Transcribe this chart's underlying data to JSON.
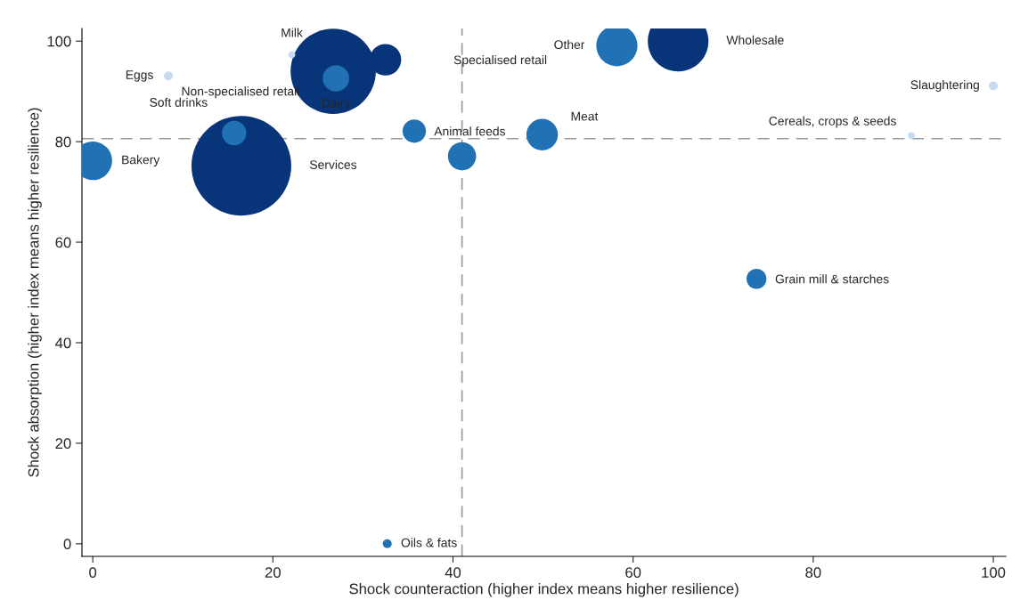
{
  "chart_data": {
    "type": "bubble",
    "xlabel": "Shock counteraction (higher index means higher resilience)",
    "ylabel": "Shock absorption (higher index means higher resilience)",
    "x": [
      0,
      16.5,
      15.7,
      8.4,
      22.1,
      26.7,
      27.0,
      32.5,
      35.7,
      41.0,
      32.7,
      49.9,
      58.2,
      65.0,
      100,
      90.9,
      73.7
    ],
    "values": [
      76.2,
      75.2,
      81.7,
      93.1,
      97.3,
      94.0,
      92.6,
      96.3,
      82.1,
      77.1,
      0,
      81.4,
      99.1,
      100,
      91.1,
      81.2,
      52.7
    ],
    "sizes": [
      0.15,
      1,
      0.06,
      0.008,
      0.005,
      0.73,
      0.07,
      0.1,
      0.055,
      0.08,
      0.008,
      0.1,
      0.17,
      0.37,
      0.008,
      0.005,
      0.04
    ],
    "colors": [
      "#2171b5",
      "#08347a",
      "#2171b5",
      "#c6dbef",
      "#c6dbef",
      "#08347a",
      "#2171b5",
      "#08347a",
      "#2171b5",
      "#2171b5",
      "#2171b5",
      "#2171b5",
      "#2171b5",
      "#08347a",
      "#c6dbef",
      "#c6dbef",
      "#2171b5"
    ],
    "annotations": [
      {
        "text": "Bakery",
        "x": 0,
        "y": 76.2
      },
      "Services",
      "Soft drinks",
      {
        "text": "Eggs",
        "x": 8.4,
        "y": 93.1
      },
      {
        "text": "Milk",
        "x": 22.1,
        "y": 97.3
      },
      "Non-specialised retail",
      {
        "text": "Dairy",
        "x": 27.0,
        "y": 92.6
      },
      "Specialised retail",
      {
        "text": "Animal feeds",
        "x": 35.7,
        "y": 82.1
      },
      {
        "text": "Oils & fats",
        "x": 32.7,
        "y": 0
      },
      {
        "text": "Meat",
        "x": 49.9,
        "y": 81.4
      },
      {
        "text": "Other",
        "x": 58.2,
        "y": 99.1
      },
      "Wholesale",
      {
        "text": "Slaughtering",
        "x": 100,
        "y": 91.1
      },
      {
        "text": "Cereals, crops & seeds",
        "x": 90.9,
        "y": 81.2
      },
      {
        "text": "Grain mill & starches",
        "x": 73.7,
        "y": 52.7
      }
    ],
    "ref_lines": [
      {
        "axis": "x",
        "value": 41,
        "color": "#999999",
        "line_style": "dashed"
      },
      {
        "axis": "y",
        "value": 80.6,
        "color": "#999999",
        "line_style": "dashed"
      }
    ],
    "xlim": [
      -1.2,
      101.4
    ],
    "ylim": [
      -2.5,
      102.5
    ],
    "xticks": [
      0,
      20,
      40,
      60,
      80,
      100
    ],
    "yticks": [
      0,
      20,
      40,
      60,
      80,
      100
    ],
    "grid": false,
    "legend": false
  }
}
